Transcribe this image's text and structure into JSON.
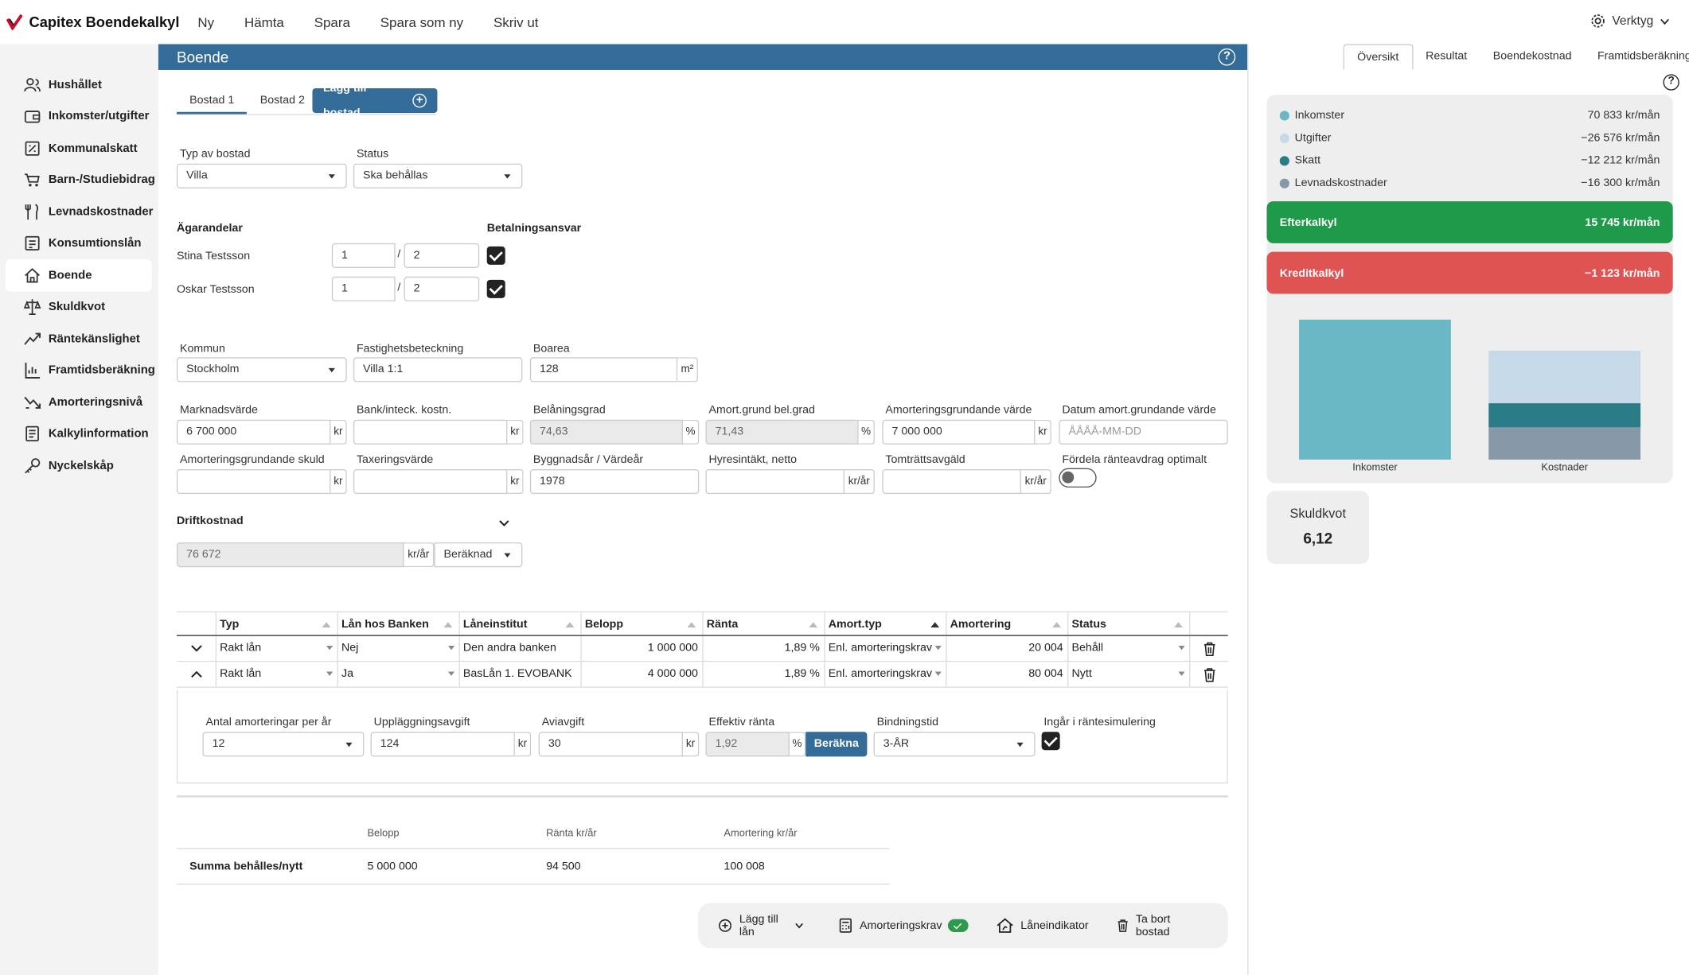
{
  "app": {
    "title": "Capitex Boendekalkyl"
  },
  "topnav": [
    "Ny",
    "Hämta",
    "Spara",
    "Spara som ny",
    "Skriv ut"
  ],
  "tools_label": "Verktyg",
  "sidebar": {
    "items": [
      {
        "label": "Hushållet",
        "icon": "people-icon"
      },
      {
        "label": "Inkomster/utgifter",
        "icon": "wallet-icon"
      },
      {
        "label": "Kommunalskatt",
        "icon": "tax-icon"
      },
      {
        "label": "Barn-/Studiebidrag",
        "icon": "stroller-icon"
      },
      {
        "label": "Levnadskostnader",
        "icon": "cutlery-icon"
      },
      {
        "label": "Konsumtionslån",
        "icon": "loan-icon"
      },
      {
        "label": "Boende",
        "icon": "home-icon"
      },
      {
        "label": "Skuldkvot",
        "icon": "scale-icon"
      },
      {
        "label": "Räntekänslighet",
        "icon": "trend-icon"
      },
      {
        "label": "Framtidsberäkning",
        "icon": "forecast-icon"
      },
      {
        "label": "Amorteringsnivå",
        "icon": "amortization-icon"
      },
      {
        "label": "Kalkylinformation",
        "icon": "info-doc-icon"
      },
      {
        "label": "Nyckelskåp",
        "icon": "key-icon"
      }
    ],
    "active": "Boende"
  },
  "main": {
    "title": "Boende",
    "help": "?",
    "tabs": [
      "Bostad 1",
      "Bostad 2"
    ],
    "add_tab": "Lägg till bostad",
    "typ_label": "Typ av bostad",
    "typ_value": "Villa",
    "status_label": "Status",
    "status_value": "Ska behållas",
    "agarandelar_label": "Ägarandelar",
    "betalningsansvar_label": "Betalningsansvar",
    "owners": [
      {
        "name": "Stina Testsson",
        "num": "1",
        "den": "2",
        "sep": "/"
      },
      {
        "name": "Oskar Testsson",
        "num": "1",
        "den": "2",
        "sep": "/"
      }
    ],
    "kommun_label": "Kommun",
    "kommun_value": "Stockholm",
    "fastighet_label": "Fastighetsbeteckning",
    "fastighet_value": "Villa 1:1",
    "boarea_label": "Boarea",
    "boarea_value": "128",
    "boarea_unit": "m²",
    "marknadsvarde_label": "Marknadsvärde",
    "marknadsvarde_value": "6 700 000",
    "bank_label": "Bank/inteck. kostn.",
    "belaningsgrad_label": "Belåningsgrad",
    "belaningsgrad_value": "74,63",
    "amortgrund_label": "Amort.grund bel.grad",
    "amortgrund_value": "71,43",
    "amortvarde_label": "Amorteringsgrundande värde",
    "amortvarde_value": "7 000 000",
    "datum_label": "Datum amort.grundande värde",
    "datum_placeholder": "ÅÅÅÅ-MM-DD",
    "amortskuld_label": "Amorteringsgrundande skuld",
    "taxering_label": "Taxeringsvärde",
    "byggnadsar_label": "Byggnadsår / Värdeår",
    "byggnadsar_value": "1978",
    "hyres_label": "Hyresintäkt, netto",
    "tomtratt_label": "Tomträttsavgäld",
    "fordela_label": "Fördela ränteavdrag optimalt",
    "drift_label": "Driftkostnad",
    "drift_value": "76 672",
    "drift_unit": "kr/år",
    "drift_mode": "Beräknad",
    "unit_kr": "kr",
    "unit_pct": "%",
    "unit_krar": "kr/år"
  },
  "loans": {
    "headers": [
      "Typ",
      "Lån hos Banken",
      "Låneinstitut",
      "Belopp",
      "Ränta",
      "Amort.typ",
      "Amortering",
      "Status"
    ],
    "rows": [
      {
        "typ": "Rakt lån",
        "hos": "Nej",
        "inst": "Den andra banken",
        "belopp": "1 000 000",
        "ranta": "1,89 %",
        "amorttyp": "Enl. amorteringskrav",
        "amort": "20 004",
        "status": "Behåll"
      },
      {
        "typ": "Rakt lån",
        "hos": "Ja",
        "inst": "BasLån 1. EVOBANK",
        "belopp": "4 000 000",
        "ranta": "1,89 %",
        "amorttyp": "Enl. amorteringskrav",
        "amort": "80 004",
        "status": "Nytt"
      }
    ],
    "details": {
      "antal_label": "Antal amorteringar per år",
      "antal_value": "12",
      "upplaggning_label": "Uppläggningsavgift",
      "upplaggning_value": "124",
      "avi_label": "Aviavgift",
      "avi_value": "30",
      "eff_label": "Effektiv ränta",
      "eff_value": "1,92",
      "berakna": "Beräkna",
      "bindning_label": "Bindningstid",
      "bindning_value": "3-ÅR",
      "ranteinsim_label": "Ingår i räntesimulering"
    }
  },
  "summary": {
    "headers": [
      "Belopp",
      "Ränta kr/år",
      "Amortering kr/år"
    ],
    "row_label": "Summa behålles/nytt",
    "values": [
      "5 000 000",
      "94 500",
      "100 008"
    ]
  },
  "actions": {
    "add_loan": "Lägg till lån",
    "amortkrav": "Amorteringskrav",
    "laneindikator": "Låneindikator",
    "ta_bort": "Ta bort bostad"
  },
  "right": {
    "tabs": [
      "Översikt",
      "Resultat",
      "Boendekostnad",
      "Framtidsberäkning"
    ],
    "rows": [
      {
        "label": "Inkomster",
        "value": "70 833 kr/mån",
        "color": "#6ab7c6"
      },
      {
        "label": "Utgifter",
        "value": "−26 576 kr/mån",
        "color": "#c6d9e8"
      },
      {
        "label": "Skatt",
        "value": "−12 212 kr/mån",
        "color": "#2a7d86"
      },
      {
        "label": "Levnadskostnader",
        "value": "−16 300 kr/mån",
        "color": "#8798a8"
      }
    ],
    "efterkalkyl_label": "Efterkalkyl",
    "efterkalkyl_value": "15 745 kr/mån",
    "kreditkalkyl_label": "Kreditkalkyl",
    "kreditkalkyl_value": "−1 123 kr/mån",
    "skuldkvot_label": "Skuldkvot",
    "skuldkvot_value": "6,12"
  },
  "chart_data": {
    "type": "bar",
    "categories": [
      "Inkomster",
      "Kostnader"
    ],
    "series": [
      {
        "name": "Inkomster",
        "values": [
          70833,
          0
        ],
        "color": "#6ab7c6"
      },
      {
        "name": "Levnadskostnader",
        "values": [
          0,
          16300
        ],
        "color": "#8798a8"
      },
      {
        "name": "Skatt",
        "values": [
          0,
          12212
        ],
        "color": "#2a7d86"
      },
      {
        "name": "Utgifter",
        "values": [
          0,
          26576
        ],
        "color": "#c6d9e8"
      }
    ],
    "stacked": true,
    "ylim": [
      0,
      70833
    ]
  }
}
